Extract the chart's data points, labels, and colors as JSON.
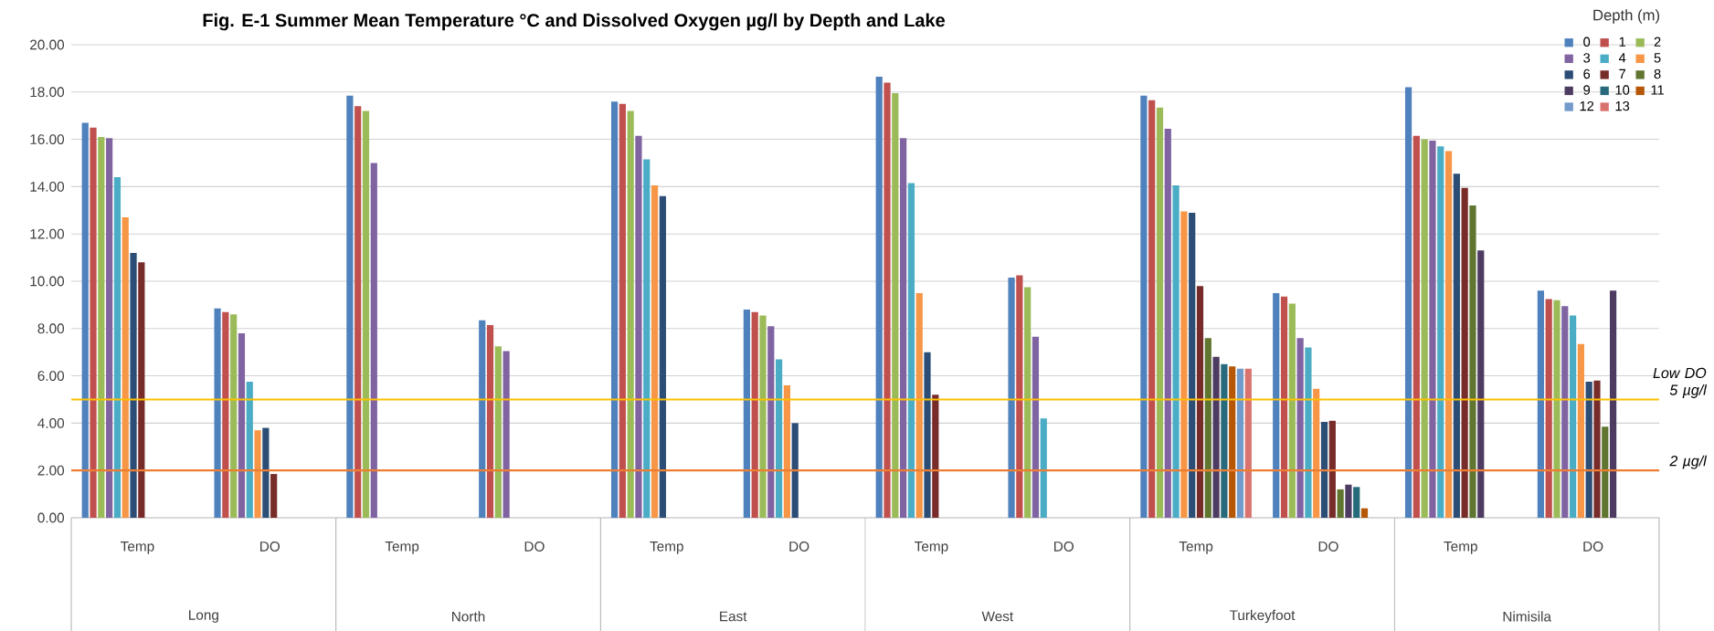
{
  "chart_data": {
    "type": "bar",
    "title": "Fig. E-1 Summer Mean Temperature °C and Dissolved Oxygen µg/l by Depth and Lake",
    "categories": [
      "Temp",
      "DO",
      "Temp",
      "DO",
      "Temp",
      "DO",
      "Temp",
      "DO",
      "Temp",
      "DO",
      "Temp",
      "DO"
    ],
    "series": [
      {
        "name": "0",
        "color": "#4f81bd",
        "values": [
          16.7,
          8.85,
          17.85,
          8.35,
          17.6,
          8.8,
          18.65,
          10.15,
          17.85,
          9.5,
          18.2,
          9.6
        ]
      },
      {
        "name": "1",
        "color": "#c0504d",
        "values": [
          16.5,
          8.7,
          17.4,
          8.15,
          17.5,
          8.7,
          18.4,
          10.25,
          17.65,
          9.35,
          16.15,
          9.25
        ]
      },
      {
        "name": "2",
        "color": "#9bbb59",
        "values": [
          16.1,
          8.6,
          17.2,
          7.25,
          17.2,
          8.55,
          17.95,
          9.75,
          17.35,
          9.05,
          16.0,
          9.2
        ]
      },
      {
        "name": "3",
        "color": "#8064a2",
        "values": [
          16.05,
          7.8,
          15.0,
          7.05,
          16.15,
          8.1,
          16.05,
          7.65,
          16.45,
          7.6,
          15.95,
          8.95
        ]
      },
      {
        "name": "4",
        "color": "#4bacc6",
        "values": [
          14.4,
          5.75,
          null,
          null,
          15.15,
          6.7,
          14.15,
          4.2,
          14.05,
          7.2,
          15.7,
          8.55
        ]
      },
      {
        "name": "5",
        "color": "#f79646",
        "values": [
          12.7,
          3.7,
          null,
          null,
          14.05,
          5.6,
          9.5,
          null,
          12.95,
          5.45,
          15.5,
          7.35
        ]
      },
      {
        "name": "6",
        "color": "#2c4d75",
        "values": [
          11.2,
          3.8,
          null,
          null,
          13.6,
          4.0,
          7.0,
          null,
          12.9,
          4.05,
          14.55,
          5.75
        ]
      },
      {
        "name": "7",
        "color": "#772c2a",
        "values": [
          10.8,
          1.85,
          null,
          null,
          null,
          null,
          5.2,
          null,
          9.8,
          4.1,
          13.95,
          5.8
        ]
      },
      {
        "name": "8",
        "color": "#5f7530",
        "values": [
          null,
          null,
          null,
          null,
          null,
          null,
          null,
          null,
          7.6,
          1.2,
          13.2,
          3.85
        ]
      },
      {
        "name": "9",
        "color": "#4d3b62",
        "values": [
          null,
          null,
          null,
          null,
          null,
          null,
          null,
          null,
          6.8,
          1.4,
          11.3,
          9.6
        ]
      },
      {
        "name": "10",
        "color": "#276a7c",
        "values": [
          null,
          null,
          null,
          null,
          null,
          null,
          null,
          null,
          6.5,
          1.3,
          null,
          null
        ]
      },
      {
        "name": "11",
        "color": "#b65708",
        "values": [
          null,
          null,
          null,
          null,
          null,
          null,
          null,
          null,
          6.4,
          0.4,
          null,
          null
        ]
      },
      {
        "name": "12",
        "color": "#729aca",
        "values": [
          null,
          null,
          null,
          null,
          null,
          null,
          null,
          null,
          6.3,
          null,
          null,
          null
        ]
      },
      {
        "name": "13",
        "color": "#d9736f",
        "values": [
          null,
          null,
          null,
          null,
          null,
          null,
          null,
          null,
          6.3,
          null,
          null,
          null
        ]
      }
    ],
    "ylim": [
      0,
      20
    ],
    "yticks": [
      {
        "value": 0,
        "label": "0.00"
      },
      {
        "value": 2,
        "label": "2.00"
      },
      {
        "value": 4,
        "label": "4.00"
      },
      {
        "value": 6,
        "label": "6.00"
      },
      {
        "value": 8,
        "label": "8.00"
      },
      {
        "value": 10,
        "label": "10.00"
      },
      {
        "value": 12,
        "label": "12.00"
      },
      {
        "value": 14,
        "label": "14.00"
      },
      {
        "value": 16,
        "label": "16.00"
      },
      {
        "value": 18,
        "label": "18.00"
      },
      {
        "value": 20,
        "label": "20.00"
      }
    ],
    "grid": "y",
    "legend": "top right",
    "legend_title": "Depth (m)",
    "ref_lines": [
      {
        "axis": "y",
        "value": 5,
        "label": "Low DO 5 µg/l",
        "color": "#ffc000"
      },
      {
        "axis": "y",
        "value": 2,
        "label": "2 µg/l",
        "color": "#ed7d31"
      }
    ],
    "annotations": [
      "Long",
      "North",
      "East",
      "West",
      "Turkeyfoot",
      "Nimisila"
    ]
  }
}
